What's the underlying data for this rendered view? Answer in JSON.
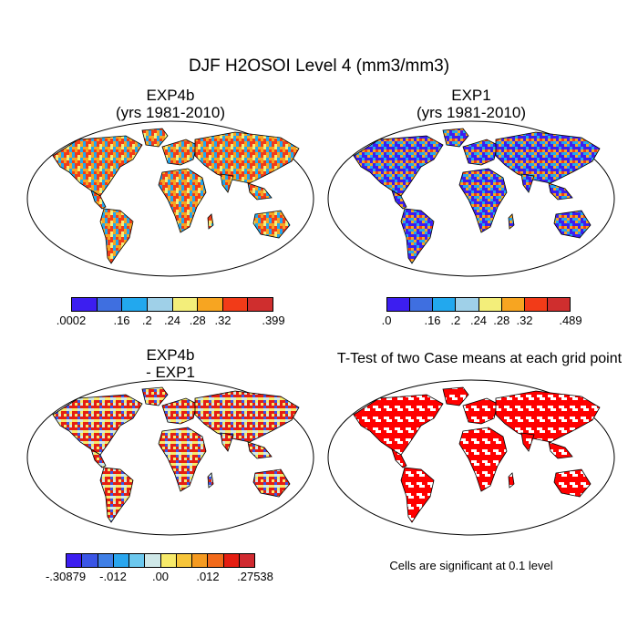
{
  "title": "DJF H2OSOI Level 4 (mm3/mm3)",
  "panels": [
    {
      "id": "exp4b",
      "title_line1": "EXP4b",
      "title_line2": "(yrs 1981-2010)",
      "colorbar": {
        "colors": [
          "#3c1ef0",
          "#3f6fe0",
          "#22a8ee",
          "#9fd0e8",
          "#f3ee7a",
          "#f7a521",
          "#f23b18",
          "#cf2e2e"
        ],
        "tick_labels": [
          ".0002",
          ".16",
          ".2",
          ".24",
          ".28",
          ".32",
          ".399"
        ]
      }
    },
    {
      "id": "exp1",
      "title_line1": "EXP1",
      "title_line2": "(yrs 1981-2010)",
      "colorbar": {
        "colors": [
          "#3c1ef0",
          "#3f6fe0",
          "#22a8ee",
          "#9fd0e8",
          "#f3ee7a",
          "#f7a521",
          "#f23b18",
          "#cf2e2e"
        ],
        "tick_labels": [
          ".0",
          ".16",
          ".2",
          ".24",
          ".28",
          ".32",
          ".489"
        ]
      }
    },
    {
      "id": "diff",
      "title_line1": "EXP4b",
      "title_line2": "- EXP1",
      "colorbar": {
        "colors": [
          "#3c1ef0",
          "#3a55e6",
          "#3f7fe6",
          "#2aa6ee",
          "#6cc8ee",
          "#cfe8e8",
          "#f7ea6a",
          "#f7c53a",
          "#f59a20",
          "#f26a1a",
          "#e51e12",
          "#d02a30"
        ],
        "tick_labels": [
          "-.30879",
          "-.012",
          ".00",
          ".012",
          ".27538"
        ]
      }
    },
    {
      "id": "ttest",
      "title": "T-Test of two Case means at each grid point",
      "note": "Cells are significant at 0.1 level"
    }
  ],
  "map_palette": {
    "ocean": "#ffffff",
    "outline": "#000000",
    "exp4b_land": [
      "#f23b18",
      "#f7a521",
      "#22a8ee",
      "#f3ee7a"
    ],
    "exp1_land": [
      "#f23b18",
      "#3c1ef0",
      "#f7a521",
      "#22a8ee"
    ],
    "diff_land": [
      "#cfe8e8",
      "#e51e12",
      "#3a55e6",
      "#f7ea6a"
    ],
    "ttest_land": [
      "#ff0000",
      "#ffffff"
    ]
  }
}
